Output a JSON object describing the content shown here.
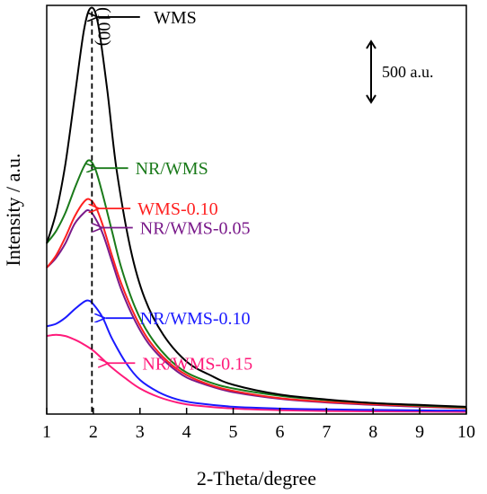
{
  "chart_data": {
    "type": "line",
    "xlabel": "2-Theta/degree",
    "ylabel": "Intensity / a.u.",
    "xlim": [
      1,
      10
    ],
    "ylim": [
      0,
      3350
    ],
    "xticks": [
      1,
      2,
      3,
      4,
      5,
      6,
      7,
      8,
      9,
      10
    ],
    "yticks_shown": false,
    "grid": false,
    "legend": "none (series labeled by arrows)",
    "peak_label": "(100)",
    "peak_position": 1.97,
    "scale_bar": {
      "label": "500 a.u.",
      "value": 500
    },
    "series": [
      {
        "name": "WMS",
        "color": "#000000",
        "x": [
          1.0,
          1.2,
          1.4,
          1.6,
          1.8,
          1.95,
          2.1,
          2.3,
          2.5,
          2.8,
          3.1,
          3.5,
          4.0,
          4.5,
          5.0,
          6.0,
          7.0,
          8.0,
          9.0,
          10.0
        ],
        "y": [
          1400,
          1650,
          2050,
          2600,
          3150,
          3330,
          3200,
          2650,
          2000,
          1350,
          950,
          650,
          430,
          320,
          240,
          160,
          120,
          90,
          75,
          60
        ],
        "label_at": [
          3.05,
          3300
        ]
      },
      {
        "name": "NR/WMS",
        "color": "#1a7a1a",
        "x": [
          1.0,
          1.2,
          1.4,
          1.6,
          1.8,
          1.92,
          2.05,
          2.2,
          2.4,
          2.6,
          2.9,
          3.2,
          3.6,
          4.0,
          4.5,
          5.0,
          6.0,
          7.0,
          8.0,
          9.0,
          10.0
        ],
        "y": [
          1400,
          1500,
          1650,
          1850,
          2030,
          2080,
          2000,
          1800,
          1500,
          1200,
          870,
          650,
          460,
          340,
          260,
          210,
          150,
          115,
          90,
          70,
          55
        ],
        "label_at": [
          2.9,
          2040
        ]
      },
      {
        "name": "WMS-0.10",
        "color": "#ff2020",
        "x": [
          1.0,
          1.2,
          1.4,
          1.6,
          1.8,
          1.92,
          2.05,
          2.2,
          2.4,
          2.6,
          2.9,
          3.2,
          3.6,
          4.0,
          4.5,
          5.0,
          6.0,
          7.0,
          8.0,
          9.0,
          10.0
        ],
        "y": [
          1200,
          1300,
          1450,
          1620,
          1740,
          1760,
          1700,
          1550,
          1300,
          1070,
          800,
          600,
          430,
          320,
          240,
          190,
          130,
          100,
          80,
          65,
          50
        ],
        "label_at": [
          2.95,
          1730
        ]
      },
      {
        "name": "NR/WMS-0.05",
        "color": "#7a1a8a",
        "x": [
          1.0,
          1.2,
          1.4,
          1.6,
          1.8,
          1.9,
          2.02,
          2.2,
          2.4,
          2.6,
          2.9,
          3.2,
          3.6,
          4.0,
          4.5,
          5.0,
          6.0,
          7.0,
          8.0,
          9.0,
          10.0
        ],
        "y": [
          1200,
          1280,
          1400,
          1560,
          1650,
          1670,
          1620,
          1480,
          1250,
          1020,
          760,
          570,
          410,
          300,
          230,
          180,
          125,
          95,
          75,
          60,
          48
        ],
        "label_at": [
          3.0,
          1490
        ]
      },
      {
        "name": "NR/WMS-0.10",
        "color": "#1a1aff",
        "x": [
          1.0,
          1.2,
          1.4,
          1.6,
          1.8,
          1.9,
          2.0,
          2.2,
          2.4,
          2.7,
          3.0,
          3.4,
          3.8,
          4.2,
          5.0,
          6.0,
          7.0,
          8.0,
          9.0,
          10.0
        ],
        "y": [
          720,
          740,
          790,
          860,
          920,
          930,
          900,
          790,
          620,
          420,
          280,
          180,
          120,
          90,
          60,
          45,
          38,
          34,
          30,
          28
        ],
        "label_at": [
          3.0,
          850
        ]
      },
      {
        "name": "NR/WMS-0.15",
        "color": "#ff1a7a",
        "x": [
          1.0,
          1.2,
          1.4,
          1.6,
          1.8,
          2.0,
          2.2,
          2.4,
          2.7,
          3.0,
          3.4,
          3.8,
          4.2,
          5.0,
          6.0,
          7.0,
          8.0,
          9.0,
          10.0
        ],
        "y": [
          640,
          650,
          640,
          610,
          570,
          520,
          450,
          380,
          290,
          210,
          140,
          95,
          70,
          45,
          32,
          25,
          22,
          20,
          18
        ],
        "label_at": [
          3.05,
          560
        ]
      }
    ]
  }
}
